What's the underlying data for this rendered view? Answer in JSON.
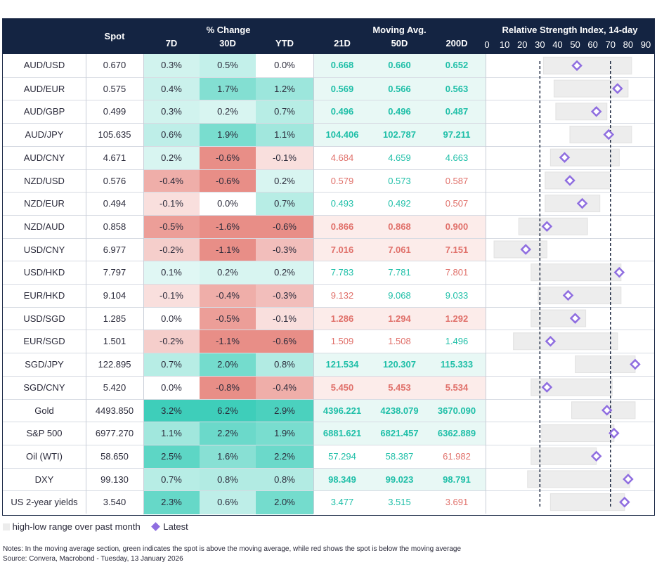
{
  "header": {
    "spot": "Spot",
    "pct_change": "% Change",
    "d7": "7D",
    "d30": "30D",
    "ytd": "YTD",
    "moving_avg": "Moving Avg.",
    "ma21": "21D",
    "ma50": "50D",
    "ma200": "200D",
    "rsi_title": "Relative Strength Index, 14-day"
  },
  "chart_data": {
    "type": "table",
    "rsi_axis": {
      "min": 0,
      "max": 90,
      "ticks": [
        0,
        10,
        20,
        30,
        40,
        50,
        60,
        70,
        80,
        90
      ],
      "reference_lines": [
        30,
        70
      ]
    },
    "rows": [
      {
        "name": "AUD/USD",
        "spot": "0.670",
        "d7": "0.3%",
        "d30": "0.5%",
        "ytd": "0.0%",
        "ma21": "0.668",
        "ma50": "0.660",
        "ma200": "0.652",
        "ma_color": [
          "g",
          "g",
          "g"
        ],
        "rsi_low": 32,
        "rsi_high": 82,
        "rsi_latest": 51
      },
      {
        "name": "AUD/EUR",
        "spot": "0.575",
        "d7": "0.4%",
        "d30": "1.7%",
        "ytd": "1.2%",
        "ma21": "0.569",
        "ma50": "0.566",
        "ma200": "0.563",
        "ma_color": [
          "g",
          "g",
          "g"
        ],
        "rsi_low": 38,
        "rsi_high": 80,
        "rsi_latest": 74
      },
      {
        "name": "AUD/GBP",
        "spot": "0.499",
        "d7": "0.3%",
        "d30": "0.2%",
        "ytd": "0.7%",
        "ma21": "0.496",
        "ma50": "0.496",
        "ma200": "0.487",
        "ma_color": [
          "g",
          "g",
          "g"
        ],
        "rsi_low": 39,
        "rsi_high": 68,
        "rsi_latest": 62
      },
      {
        "name": "AUD/JPY",
        "spot": "105.635",
        "d7": "0.6%",
        "d30": "1.9%",
        "ytd": "1.1%",
        "ma21": "104.406",
        "ma50": "102.787",
        "ma200": "97.211",
        "ma_color": [
          "g",
          "g",
          "g"
        ],
        "rsi_low": 47,
        "rsi_high": 82,
        "rsi_latest": 69
      },
      {
        "name": "AUD/CNY",
        "spot": "4.671",
        "d7": "0.2%",
        "d30": "-0.6%",
        "ytd": "-0.1%",
        "ma21": "4.684",
        "ma50": "4.659",
        "ma200": "4.663",
        "ma_color": [
          "r",
          "g",
          "g"
        ],
        "rsi_low": 36,
        "rsi_high": 75,
        "rsi_latest": 44
      },
      {
        "name": "NZD/USD",
        "spot": "0.576",
        "d7": "-0.4%",
        "d30": "-0.6%",
        "ytd": "0.2%",
        "ma21": "0.579",
        "ma50": "0.573",
        "ma200": "0.587",
        "ma_color": [
          "r",
          "g",
          "r"
        ],
        "rsi_low": 33,
        "rsi_high": 70,
        "rsi_latest": 47
      },
      {
        "name": "NZD/EUR",
        "spot": "0.494",
        "d7": "-0.1%",
        "d30": "0.0%",
        "ytd": "0.7%",
        "ma21": "0.493",
        "ma50": "0.492",
        "ma200": "0.507",
        "ma_color": [
          "g",
          "g",
          "r"
        ],
        "rsi_low": 33,
        "rsi_high": 64,
        "rsi_latest": 54
      },
      {
        "name": "NZD/AUD",
        "spot": "0.858",
        "d7": "-0.5%",
        "d30": "-1.6%",
        "ytd": "-0.6%",
        "ma21": "0.866",
        "ma50": "0.868",
        "ma200": "0.900",
        "ma_color": [
          "r",
          "r",
          "r"
        ],
        "rsi_low": 18,
        "rsi_high": 57,
        "rsi_latest": 34
      },
      {
        "name": "USD/CNY",
        "spot": "6.977",
        "d7": "-0.2%",
        "d30": "-1.1%",
        "ytd": "-0.3%",
        "ma21": "7.016",
        "ma50": "7.061",
        "ma200": "7.151",
        "ma_color": [
          "r",
          "r",
          "r"
        ],
        "rsi_low": 4,
        "rsi_high": 34,
        "rsi_latest": 22
      },
      {
        "name": "USD/HKD",
        "spot": "7.797",
        "d7": "0.1%",
        "d30": "0.2%",
        "ytd": "0.2%",
        "ma21": "7.783",
        "ma50": "7.781",
        "ma200": "7.801",
        "ma_color": [
          "g",
          "g",
          "r"
        ],
        "rsi_low": 25,
        "rsi_high": 76,
        "rsi_latest": 75
      },
      {
        "name": "EUR/HKD",
        "spot": "9.104",
        "d7": "-0.1%",
        "d30": "-0.4%",
        "ytd": "-0.3%",
        "ma21": "9.132",
        "ma50": "9.068",
        "ma200": "9.033",
        "ma_color": [
          "r",
          "g",
          "g"
        ],
        "rsi_low": 29,
        "rsi_high": 76,
        "rsi_latest": 46
      },
      {
        "name": "USD/SGD",
        "spot": "1.285",
        "d7": "0.0%",
        "d30": "-0.5%",
        "ytd": "-0.1%",
        "ma21": "1.286",
        "ma50": "1.294",
        "ma200": "1.292",
        "ma_color": [
          "r",
          "r",
          "r"
        ],
        "rsi_low": 25,
        "rsi_high": 56,
        "rsi_latest": 50
      },
      {
        "name": "EUR/SGD",
        "spot": "1.501",
        "d7": "-0.2%",
        "d30": "-1.1%",
        "ytd": "-0.6%",
        "ma21": "1.509",
        "ma50": "1.508",
        "ma200": "1.496",
        "ma_color": [
          "r",
          "r",
          "g"
        ],
        "rsi_low": 15,
        "rsi_high": 74,
        "rsi_latest": 36
      },
      {
        "name": "SGD/JPY",
        "spot": "122.895",
        "d7": "0.7%",
        "d30": "2.0%",
        "ytd": "0.8%",
        "ma21": "121.534",
        "ma50": "120.307",
        "ma200": "115.333",
        "ma_color": [
          "g",
          "g",
          "g"
        ],
        "rsi_low": 50,
        "rsi_high": 84,
        "rsi_latest": 84
      },
      {
        "name": "SGD/CNY",
        "spot": "5.420",
        "d7": "0.0%",
        "d30": "-0.8%",
        "ytd": "-0.4%",
        "ma21": "5.450",
        "ma50": "5.453",
        "ma200": "5.534",
        "ma_color": [
          "r",
          "r",
          "r"
        ],
        "rsi_low": 25,
        "rsi_high": 71,
        "rsi_latest": 34
      },
      {
        "name": "Gold",
        "spot": "4493.850",
        "d7": "3.2%",
        "d30": "6.2%",
        "ytd": "2.9%",
        "ma21": "4396.221",
        "ma50": "4238.079",
        "ma200": "3670.090",
        "ma_color": [
          "g",
          "g",
          "g"
        ],
        "rsi_low": 48,
        "rsi_high": 84,
        "rsi_latest": 68
      },
      {
        "name": "S&P 500",
        "spot": "6977.270",
        "d7": "1.1%",
        "d30": "2.2%",
        "ytd": "1.9%",
        "ma21": "6881.621",
        "ma50": "6821.457",
        "ma200": "6362.889",
        "ma_color": [
          "g",
          "g",
          "g"
        ],
        "rsi_low": 31,
        "rsi_high": 72,
        "rsi_latest": 72
      },
      {
        "name": "Oil (WTI)",
        "spot": "58.650",
        "d7": "2.5%",
        "d30": "1.6%",
        "ytd": "2.2%",
        "ma21": "57.294",
        "ma50": "58.387",
        "ma200": "61.982",
        "ma_color": [
          "g",
          "g",
          "r"
        ],
        "rsi_low": 25,
        "rsi_high": 62,
        "rsi_latest": 62
      },
      {
        "name": "DXY",
        "spot": "99.130",
        "d7": "0.7%",
        "d30": "0.8%",
        "ytd": "0.8%",
        "ma21": "98.349",
        "ma50": "99.023",
        "ma200": "98.791",
        "ma_color": [
          "g",
          "g",
          "g"
        ],
        "rsi_low": 23,
        "rsi_high": 81,
        "rsi_latest": 80
      },
      {
        "name": "US 2-year yields",
        "spot": "3.540",
        "d7": "2.3%",
        "d30": "0.6%",
        "ytd": "2.0%",
        "ma21": "3.477",
        "ma50": "3.515",
        "ma200": "3.691",
        "ma_color": [
          "g",
          "g",
          "r"
        ],
        "rsi_low": 36,
        "rsi_high": 78,
        "rsi_latest": 78
      }
    ]
  },
  "legend": {
    "range_label": "high-low range over past month",
    "latest_label": "Latest"
  },
  "notes": {
    "line1": "Notes: In the moving average section, green indicates the spot is above the moving average, while red shows the spot is below the moving average",
    "line2": "Source: Convera, Macrobond - Tuesday, 13 January 2026"
  },
  "colors": {
    "header_bg": "#142442",
    "ma_green": "#1fbfa8",
    "ma_red": "#e0706a",
    "marker": "#8f6ee0"
  }
}
